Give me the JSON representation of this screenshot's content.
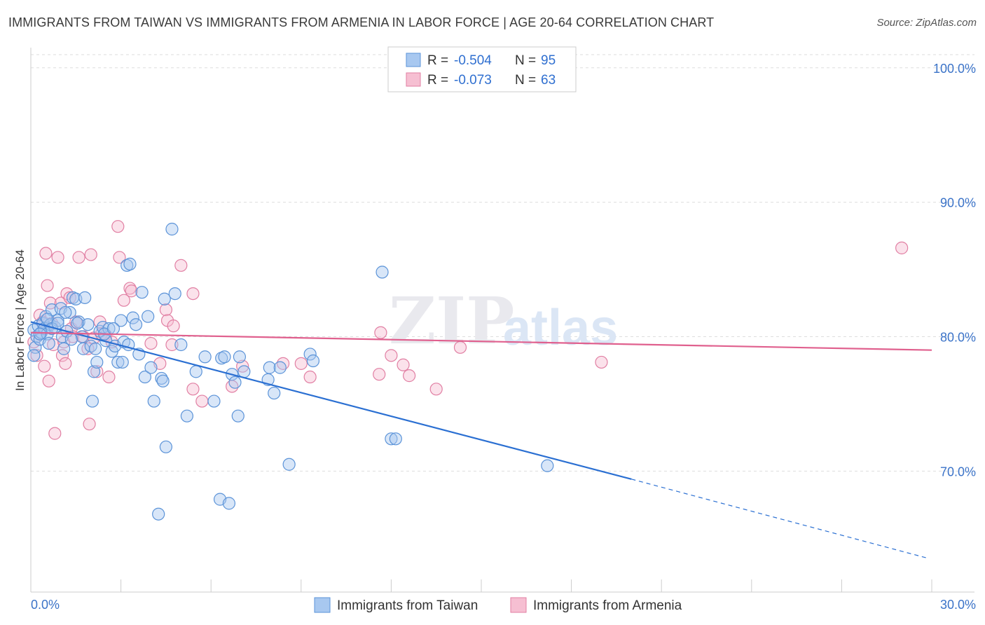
{
  "title": "IMMIGRANTS FROM TAIWAN VS IMMIGRANTS FROM ARMENIA IN LABOR FORCE | AGE 20-64 CORRELATION CHART",
  "source": "Source: ZipAtlas.com",
  "watermark": {
    "zip": "ZIP",
    "atlas": "atlas"
  },
  "colors": {
    "taiwan_fill": "#a8c8f0",
    "taiwan_stroke": "#5b93d8",
    "taiwan_line": "#2a6fd2",
    "armenia_fill": "#f6bfd2",
    "armenia_stroke": "#e17fa3",
    "armenia_line": "#e0608e",
    "grid": "#dddddd",
    "tick_label": "#3b73c8"
  },
  "legend": {
    "r_label": "R =",
    "n_label": "N =",
    "taiwan": {
      "r": "-0.504",
      "n": "95"
    },
    "armenia": {
      "r": "-0.073",
      "n": "63"
    }
  },
  "chart_data": {
    "type": "scatter",
    "title": "IMMIGRANTS FROM TAIWAN VS IMMIGRANTS FROM ARMENIA IN LABOR FORCE | AGE 20-64 CORRELATION CHART",
    "xlabel": "",
    "ylabel": "In Labor Force | Age 20-64",
    "xlim": [
      0,
      30
    ],
    "ylim": [
      61,
      101.5
    ],
    "x_tick_labels": [
      "0.0%",
      "30.0%"
    ],
    "y_ticks": [
      70,
      80,
      90,
      100
    ],
    "y_tick_labels": [
      "70.0%",
      "80.0%",
      "90.0%",
      "100.0%"
    ],
    "grid": true,
    "series": [
      {
        "name": "Immigrants from Taiwan",
        "points": [
          [
            0.1,
            80.5
          ],
          [
            0.15,
            79.2
          ],
          [
            0.2,
            80.0
          ],
          [
            0.25,
            80.8
          ],
          [
            0.3,
            79.8
          ],
          [
            0.35,
            80.3
          ],
          [
            0.4,
            81.0
          ],
          [
            0.45,
            80.6
          ],
          [
            0.5,
            81.5
          ],
          [
            0.55,
            80.2
          ],
          [
            0.6,
            79.5
          ],
          [
            0.65,
            80.9
          ],
          [
            0.7,
            82.0
          ],
          [
            0.8,
            80.7
          ],
          [
            0.9,
            81.2
          ],
          [
            1.0,
            82.1
          ],
          [
            1.05,
            80.0
          ],
          [
            1.1,
            79.1
          ],
          [
            1.2,
            80.4
          ],
          [
            1.3,
            81.8
          ],
          [
            1.4,
            82.9
          ],
          [
            1.5,
            82.8
          ],
          [
            1.6,
            81.1
          ],
          [
            1.7,
            80.0
          ],
          [
            1.75,
            79.1
          ],
          [
            1.8,
            82.9
          ],
          [
            1.9,
            80.9
          ],
          [
            2.0,
            79.3
          ],
          [
            2.05,
            75.2
          ],
          [
            2.1,
            77.4
          ],
          [
            2.2,
            78.1
          ],
          [
            2.3,
            80.4
          ],
          [
            2.4,
            80.7
          ],
          [
            2.5,
            79.7
          ],
          [
            2.6,
            80.6
          ],
          [
            2.7,
            78.9
          ],
          [
            2.8,
            79.3
          ],
          [
            2.9,
            78.1
          ],
          [
            3.0,
            81.2
          ],
          [
            3.1,
            79.6
          ],
          [
            3.2,
            85.3
          ],
          [
            3.3,
            85.4
          ],
          [
            3.4,
            81.4
          ],
          [
            3.5,
            80.9
          ],
          [
            3.6,
            78.7
          ],
          [
            3.7,
            83.3
          ],
          [
            3.8,
            77.0
          ],
          [
            3.9,
            81.5
          ],
          [
            4.0,
            77.7
          ],
          [
            4.1,
            75.2
          ],
          [
            4.25,
            66.8
          ],
          [
            4.35,
            76.9
          ],
          [
            4.4,
            76.7
          ],
          [
            4.45,
            82.8
          ],
          [
            4.5,
            71.8
          ],
          [
            4.7,
            88.0
          ],
          [
            4.8,
            83.2
          ],
          [
            5.0,
            79.4
          ],
          [
            5.2,
            74.1
          ],
          [
            5.5,
            77.4
          ],
          [
            5.8,
            78.5
          ],
          [
            6.1,
            75.2
          ],
          [
            6.3,
            67.9
          ],
          [
            6.35,
            78.4
          ],
          [
            6.45,
            78.5
          ],
          [
            6.6,
            67.6
          ],
          [
            6.7,
            77.2
          ],
          [
            6.8,
            76.6
          ],
          [
            6.9,
            74.1
          ],
          [
            6.95,
            78.5
          ],
          [
            7.1,
            77.4
          ],
          [
            7.9,
            76.8
          ],
          [
            7.95,
            77.7
          ],
          [
            8.1,
            75.8
          ],
          [
            8.3,
            77.7
          ],
          [
            8.6,
            70.5
          ],
          [
            9.3,
            78.7
          ],
          [
            9.4,
            78.2
          ],
          [
            11.7,
            84.8
          ],
          [
            12.0,
            72.4
          ],
          [
            12.15,
            72.4
          ],
          [
            17.2,
            70.4
          ],
          [
            0.1,
            78.6
          ],
          [
            0.3,
            80.2
          ],
          [
            0.55,
            81.3
          ],
          [
            0.7,
            80.6
          ],
          [
            0.9,
            81.0
          ],
          [
            1.15,
            81.8
          ],
          [
            1.35,
            79.8
          ],
          [
            1.55,
            81.0
          ],
          [
            2.15,
            79.1
          ],
          [
            2.45,
            80.2
          ],
          [
            2.75,
            80.6
          ],
          [
            3.05,
            78.1
          ],
          [
            3.25,
            79.4
          ]
        ]
      },
      {
        "name": "Immigrants from Armenia",
        "points": [
          [
            0.1,
            79.6
          ],
          [
            0.2,
            78.6
          ],
          [
            0.3,
            81.6
          ],
          [
            0.4,
            81.1
          ],
          [
            0.45,
            77.8
          ],
          [
            0.5,
            86.2
          ],
          [
            0.55,
            83.8
          ],
          [
            0.6,
            76.7
          ],
          [
            0.65,
            82.5
          ],
          [
            0.7,
            81.0
          ],
          [
            0.75,
            79.4
          ],
          [
            0.8,
            72.8
          ],
          [
            0.9,
            85.9
          ],
          [
            1.0,
            82.5
          ],
          [
            1.05,
            78.6
          ],
          [
            1.1,
            79.6
          ],
          [
            1.15,
            78.0
          ],
          [
            1.2,
            83.2
          ],
          [
            1.3,
            82.9
          ],
          [
            1.35,
            80.6
          ],
          [
            1.4,
            80.0
          ],
          [
            1.5,
            81.1
          ],
          [
            1.6,
            85.9
          ],
          [
            1.75,
            80.0
          ],
          [
            1.9,
            79.1
          ],
          [
            1.95,
            73.5
          ],
          [
            2.0,
            86.1
          ],
          [
            2.1,
            79.9
          ],
          [
            2.2,
            77.4
          ],
          [
            2.3,
            81.1
          ],
          [
            2.35,
            80.2
          ],
          [
            2.5,
            80.1
          ],
          [
            2.6,
            77.0
          ],
          [
            2.7,
            79.6
          ],
          [
            2.9,
            88.2
          ],
          [
            2.95,
            85.9
          ],
          [
            3.1,
            82.7
          ],
          [
            3.3,
            83.6
          ],
          [
            3.35,
            83.4
          ],
          [
            4.0,
            79.5
          ],
          [
            4.3,
            78.0
          ],
          [
            4.5,
            82.0
          ],
          [
            4.55,
            81.2
          ],
          [
            4.7,
            79.4
          ],
          [
            4.75,
            80.8
          ],
          [
            5.0,
            85.3
          ],
          [
            5.4,
            83.2
          ],
          [
            5.4,
            76.1
          ],
          [
            5.7,
            75.2
          ],
          [
            6.7,
            76.3
          ],
          [
            7.05,
            77.8
          ],
          [
            8.4,
            78.0
          ],
          [
            9.0,
            78.0
          ],
          [
            9.3,
            77.0
          ],
          [
            11.6,
            77.2
          ],
          [
            11.65,
            80.3
          ],
          [
            12.0,
            78.6
          ],
          [
            12.4,
            77.9
          ],
          [
            12.6,
            77.1
          ],
          [
            13.5,
            76.1
          ],
          [
            14.3,
            79.2
          ],
          [
            19.0,
            78.1
          ],
          [
            29.0,
            86.6
          ]
        ]
      }
    ],
    "trend_lines": [
      {
        "name": "Immigrants from Taiwan",
        "x0": 0,
        "y0": 81.1,
        "x1": 20.0,
        "y1": 69.4,
        "dashed_to_x": 29.9,
        "dashed_to_y": 63.5
      },
      {
        "name": "Immigrants from Armenia",
        "x0": 0,
        "y0": 80.3,
        "x1": 30.0,
        "y1": 79.0
      }
    ]
  },
  "bottom_legend": {
    "taiwan": "Immigrants from Taiwan",
    "armenia": "Immigrants from Armenia"
  }
}
